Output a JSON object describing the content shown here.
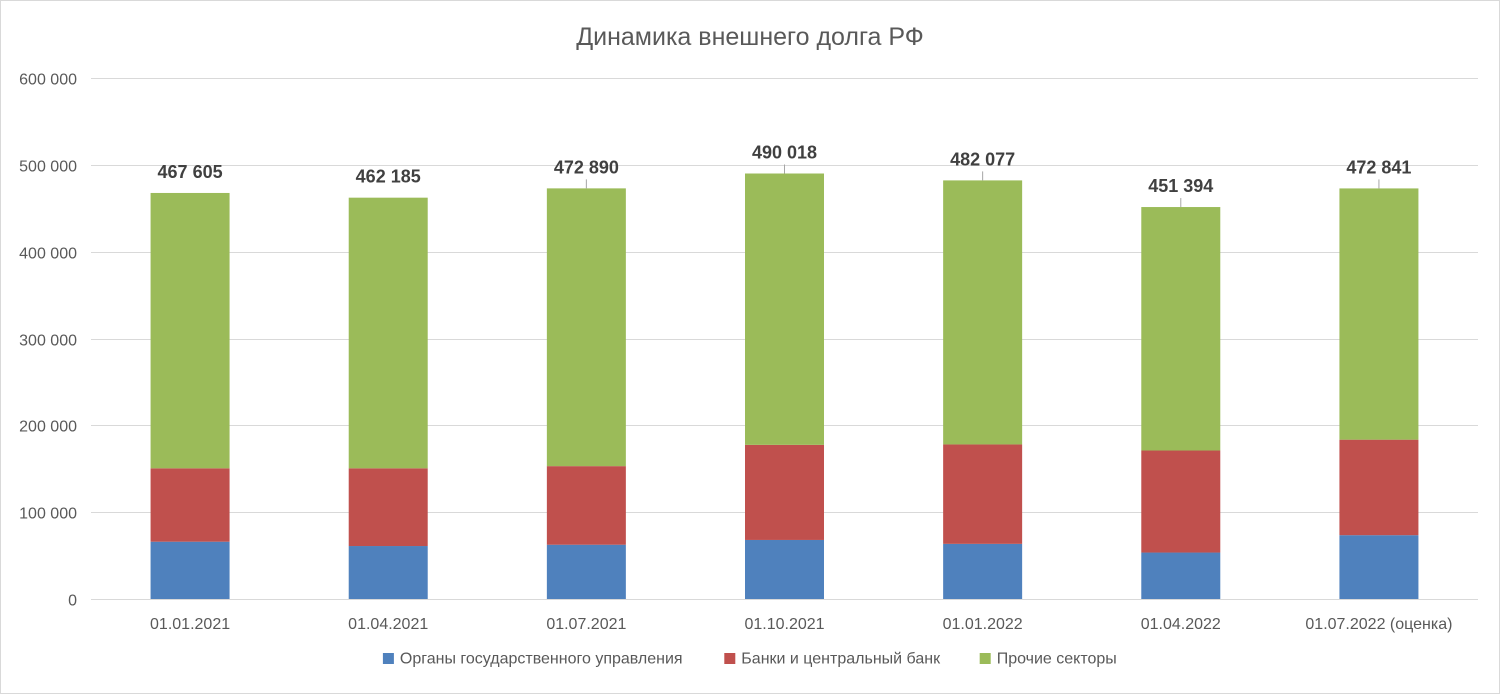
{
  "chart_data": {
    "type": "bar",
    "stacked": true,
    "title": "Динамика внешнего долга РФ",
    "xlabel": "",
    "ylabel": "",
    "ylim": [
      0,
      600000
    ],
    "yticks": [
      0,
      100000,
      200000,
      300000,
      400000,
      500000,
      600000
    ],
    "ytick_labels": [
      "0",
      "100 000",
      "200 000",
      "300 000",
      "400 000",
      "500 000",
      "600 000"
    ],
    "grid": true,
    "legend_position": "bottom",
    "categories": [
      "01.01.2021",
      "01.04.2021",
      "01.07.2021",
      "01.10.2021",
      "01.01.2022",
      "01.04.2022",
      "01.07.2022  (оценка)"
    ],
    "series": [
      {
        "name": "Органы государственного управления",
        "color": "#4f81bd",
        "values": [
          66000,
          61000,
          62500,
          68000,
          63500,
          53500,
          73500
        ]
      },
      {
        "name": "Банки и центральный банк",
        "color": "#c0504d",
        "values": [
          84500,
          89500,
          90500,
          109500,
          114500,
          117500,
          110000
        ]
      },
      {
        "name": "Прочие секторы",
        "color": "#9bbb59",
        "values": [
          317105,
          311685,
          319890,
          312518,
          304077,
          280394,
          289341
        ]
      }
    ],
    "totals": [
      467605,
      462185,
      472890,
      490018,
      482077,
      451394,
      472841
    ],
    "total_labels": [
      "467 605",
      "462 185",
      "472 890",
      "490 018",
      "482 077",
      "451 394",
      "472 841"
    ]
  }
}
